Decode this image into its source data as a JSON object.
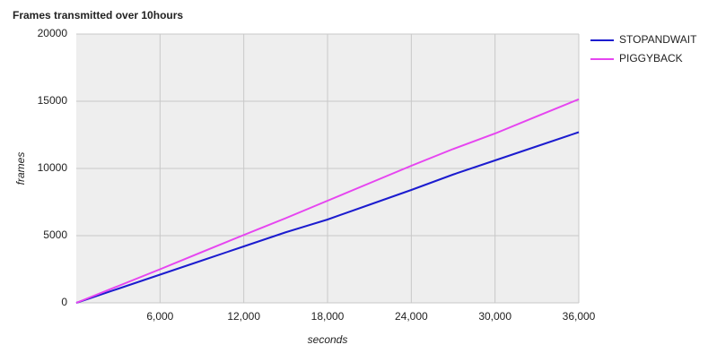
{
  "chart_data": {
    "type": "line",
    "title": "Frames transmitted over 10hours",
    "x_label": "seconds",
    "y_label": "frames",
    "x": [
      0,
      3000,
      6000,
      9000,
      12000,
      15000,
      18000,
      21000,
      24000,
      27000,
      30000,
      33000,
      36000
    ],
    "series": [
      {
        "name": "STOPANDWAIT",
        "color": "#1c1ccf",
        "values": [
          0,
          1050,
          2100,
          3150,
          4200,
          5250,
          6200,
          7300,
          8400,
          9550,
          10600,
          11650,
          12700
        ]
      },
      {
        "name": "PIGGYBACK",
        "color": "#e645f0",
        "values": [
          0,
          1250,
          2500,
          3780,
          5050,
          6300,
          7600,
          8900,
          10200,
          11450,
          12600,
          13880,
          15150
        ]
      }
    ],
    "xlim": [
      0,
      36000
    ],
    "xticks": [
      {
        "value": 6000,
        "label": "6,000"
      },
      {
        "value": 12000,
        "label": "12,000"
      },
      {
        "value": 18000,
        "label": "18,000"
      },
      {
        "value": 24000,
        "label": "24,000"
      },
      {
        "value": 30000,
        "label": "30,000"
      },
      {
        "value": 36000,
        "label": "36,000"
      }
    ],
    "ylim": [
      0,
      20000
    ],
    "yticks": [
      0,
      5000,
      10000,
      15000,
      20000
    ],
    "grid": true
  }
}
